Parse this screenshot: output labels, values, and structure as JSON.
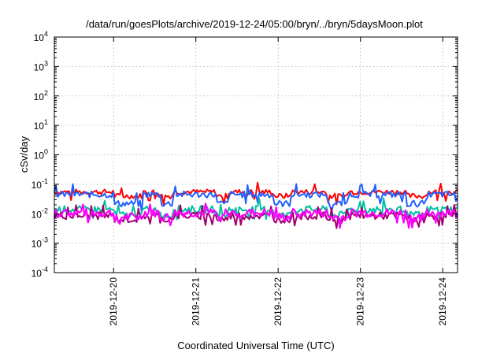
{
  "chart_data": {
    "type": "line",
    "title": "/data/run/goesPlots/archive/2019-12-24/05:00/bryn/../bryn/5daysMoon.plot",
    "xlabel": "Coordinated Universal Time (UTC)",
    "ylabel": "cSv/day",
    "yscale": "log",
    "ylim": [
      0.0001,
      10000
    ],
    "ytick_exponents": [
      "-4",
      "-3",
      "-2",
      "-1",
      "0",
      "1",
      "2",
      "3",
      "4"
    ],
    "xlim": [
      -0.72,
      4.18
    ],
    "xticks": [
      {
        "label": "2019-12-20",
        "x": 0
      },
      {
        "label": "2019-12-21",
        "x": 1
      },
      {
        "label": "2019-12-22",
        "x": 2
      },
      {
        "label": "2019-12-23",
        "x": 3
      },
      {
        "label": "2019-12-24",
        "x": 4
      }
    ],
    "grid": true,
    "legend": "none",
    "series": [
      {
        "color": "#ff0000",
        "base": 0.055,
        "low": 0.04,
        "noise": 0.18
      },
      {
        "color": "#2060ff",
        "base": 0.045,
        "low": 0.022,
        "noise": 0.22
      },
      {
        "color": "#00c0a0",
        "base": 0.014,
        "low": 0.009,
        "noise": 0.25
      },
      {
        "color": "#a00070",
        "base": 0.0085,
        "low": 0.0065,
        "noise": 0.25
      },
      {
        "color": "#ff00ff",
        "base": 0.0105,
        "low": 0.0075,
        "noise": 0.3
      }
    ]
  }
}
